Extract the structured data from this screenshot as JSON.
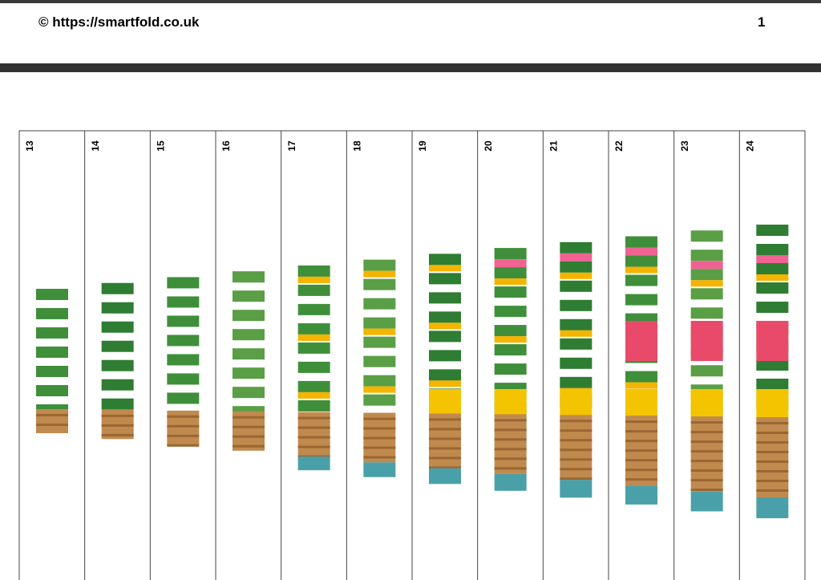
{
  "header": {
    "copyright": "© https://smartfold.co.uk",
    "page_number": "1"
  },
  "strips": {
    "labels": [
      "13",
      "14",
      "15",
      "16",
      "17",
      "18",
      "19",
      "20",
      "21",
      "22",
      "23",
      "24"
    ]
  }
}
